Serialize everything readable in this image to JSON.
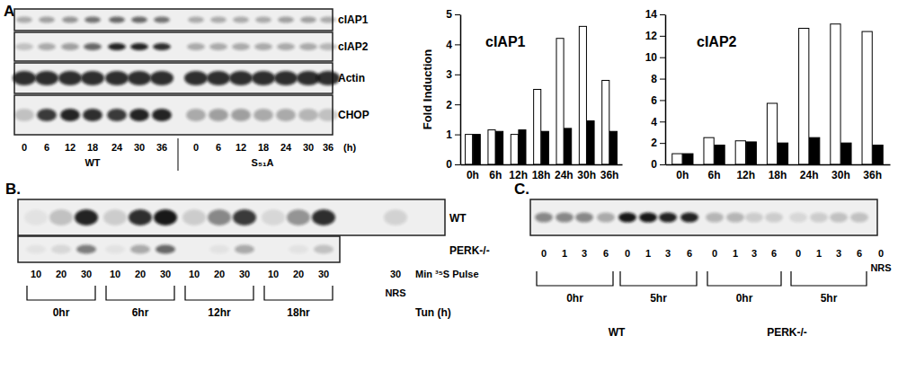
{
  "chart_data": [
    {
      "type": "bar",
      "title": "cIAP1",
      "y_label": "Fold Induction",
      "categories": [
        "0h",
        "6h",
        "12h",
        "18h",
        "24h",
        "30h",
        "36h"
      ],
      "series": [
        {
          "color": "#ffffff",
          "values": [
            1,
            1.15,
            1.0,
            2.5,
            4.2,
            4.6,
            2.8
          ]
        },
        {
          "color": "#000000",
          "values": [
            1,
            1.1,
            1.15,
            1.1,
            1.2,
            1.45,
            1.1
          ]
        }
      ],
      "ylim": [
        0,
        5
      ],
      "yticks": [
        0,
        1,
        2,
        3,
        4,
        5
      ]
    },
    {
      "type": "bar",
      "title": "cIAP2",
      "categories": [
        "0h",
        "6h",
        "12h",
        "18h",
        "24h",
        "30h",
        "36h"
      ],
      "series": [
        {
          "color": "#ffffff",
          "values": [
            1,
            2.5,
            2.2,
            5.7,
            12.7,
            13.1,
            12.4
          ]
        },
        {
          "color": "#000000",
          "values": [
            1,
            1.8,
            2.1,
            2.0,
            2.5,
            2.0,
            1.8
          ]
        }
      ],
      "ylim": [
        0,
        14
      ],
      "yticks": [
        0,
        2,
        4,
        6,
        8,
        10,
        12,
        14
      ]
    }
  ],
  "panel_a": {
    "letter": "A.",
    "rows": [
      "cIAP1",
      "cIAP2",
      "Actin",
      "CHOP"
    ],
    "lanes": [
      "0",
      "6",
      "12",
      "18",
      "24",
      "30",
      "36",
      "0",
      "6",
      "12",
      "18",
      "24",
      "30",
      "36"
    ],
    "unit": "(h)",
    "groups": [
      "WT",
      "S₅₁A"
    ]
  },
  "panel_b": {
    "letter": "B.",
    "rows": [
      "WT",
      "PERK-/-"
    ],
    "lanes": [
      "10",
      "20",
      "30",
      "10",
      "20",
      "30",
      "10",
      "20",
      "30",
      "10",
      "20",
      "30",
      "30"
    ],
    "lane_caption": "Min ³⁵S Pulse",
    "control": "NRS",
    "groups": [
      "0hr",
      "6hr",
      "12hr",
      "18hr"
    ],
    "group_caption": "Tun (h)"
  },
  "panel_c": {
    "letter": "C.",
    "lanes": [
      "0",
      "1",
      "3",
      "6",
      "0",
      "1",
      "3",
      "6",
      "0",
      "1",
      "3",
      "6",
      "0",
      "1",
      "3",
      "6",
      "0"
    ],
    "control": "NRS",
    "groups": [
      "0hr",
      "5hr",
      "0hr",
      "5hr"
    ],
    "strains": [
      "WT",
      "PERK-/-"
    ]
  }
}
